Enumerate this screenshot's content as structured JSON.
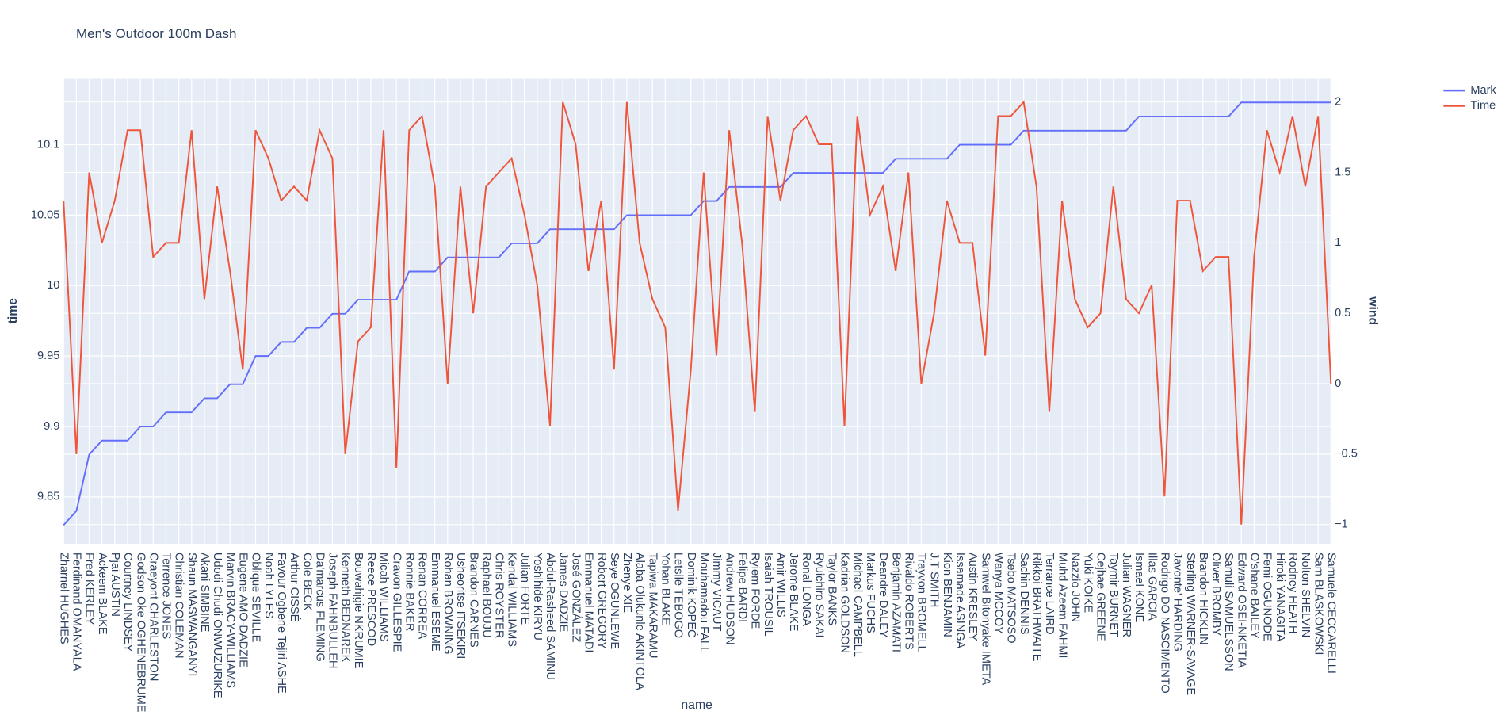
{
  "chart_data": {
    "type": "line",
    "title": "Men's Outdoor 100m Dash",
    "x_label": "name",
    "y_label": "time",
    "y2_label": "wind",
    "categories": [
      "Zharnel HUGHES",
      "Ferdinand OMANYALA",
      "Fred KERLEY",
      "Ackeem BLAKE",
      "Pjai AUSTIN",
      "Courtney LINDSEY",
      "Godson Oke OGHENEBRUME",
      "Craeyont CHARLESTON",
      "Terrence JONES",
      "Christian COLEMAN",
      "Shaun MASWANGANYI",
      "Akani SIMBINE",
      "Udodi Chudi ONWUZURIKE",
      "Marvin BRACY-WILLIAMS",
      "Eugene AMO-DADZIE",
      "Oblique SEVILLE",
      "Noah LYLES",
      "Favour Ogbene Tejiri ASHE",
      "Arthur CISSÉ",
      "Cole BECK",
      "Da'marcus FLEMING",
      "Joseph FAHNBULLEH",
      "Kenneth BEDNAREK",
      "Bouwahjgie NKRUMIE",
      "Reece PRESCOD",
      "Micah WILLIAMS",
      "Cravon GILLESPIE",
      "Ronnie BAKER",
      "Renan CORREA",
      "Emmanuel ESEME",
      "Rohan BROWNING",
      "Usheoritse ITSEKIRI",
      "Brandon CARNES",
      "Raphael BOUJU",
      "Chris ROYSTER",
      "Kendal WILLIAMS",
      "Julian FORTE",
      "Yoshihide KIRYU",
      "Abdul-Rasheed SAMINU",
      "James DADZIE",
      "José GONZÁLEZ",
      "Emmanuel MATADI",
      "Robert GREGORY",
      "Seye OGUNLEWE",
      "Zhenye XIE",
      "Alaba Olukunle AKINTOLA",
      "Tapiwa MAKARAMU",
      "Yohan BLAKE",
      "Letsile TEBOGO",
      "Dominik KOPEĆ",
      "Mouhamadou FALL",
      "Jimmy VICAUT",
      "Andrew HUDSON",
      "Felipe BARDI",
      "Ryiem FORDE",
      "Isaiah TROUSIL",
      "Amir WILLIS",
      "Jerome BLAKE",
      "Ronal LONGA",
      "Ryuichiro SAKAI",
      "Taylor BANKS",
      "Kadrian GOLDSON",
      "Michael CAMPBELL",
      "Markus FUCHS",
      "Deandre DALEY",
      "Benjamin AZAMATI",
      "Rivaldo ROBERTS",
      "Trayvon BROMELL",
      "J.T SMITH",
      "Kion BENJAMIN",
      "Issamade ASINGA",
      "Austin KRESLEY",
      "Samwel Bitonyake IMETA",
      "Wanya MCCOY",
      "Tsebo MATSOSO",
      "Sachin DENNIS",
      "Rikkoi BRATHWAITE",
      "Terrance LAIRD",
      "Muhd Azeem FAHMI",
      "Nazzio JOHN",
      "Yuki KOIKE",
      "Cejhae GREENE",
      "Taymir BURNET",
      "Julian WAGNER",
      "Ismael KONE",
      "Illas GARCIA",
      "Rodrigo DO NASCIMENTO",
      "Javonte' HARDING",
      "Sterling WARNER-SAVAGE",
      "Brandon HICKLIN",
      "Oliver BROMBY",
      "Samuli SAMUELSSON",
      "Edward OSEI-NKETIA",
      "O'shane BAILEY",
      "Femi OGUNODE",
      "Hiroki YANAGITA",
      "Rodney HEATH",
      "Nolton SHELVIN",
      "Sam BLASKOWSKI",
      "Samuele CECCARELLI"
    ],
    "series": [
      {
        "name": "Mark",
        "color": "#636efa",
        "values": [
          9.83,
          9.84,
          9.88,
          9.89,
          9.89,
          9.89,
          9.9,
          9.9,
          9.91,
          9.91,
          9.91,
          9.92,
          9.92,
          9.93,
          9.93,
          9.95,
          9.95,
          9.96,
          9.96,
          9.97,
          9.97,
          9.98,
          9.98,
          9.99,
          9.99,
          9.99,
          9.99,
          10.01,
          10.01,
          10.01,
          10.02,
          10.02,
          10.02,
          10.02,
          10.02,
          10.03,
          10.03,
          10.03,
          10.04,
          10.04,
          10.04,
          10.04,
          10.04,
          10.04,
          10.05,
          10.05,
          10.05,
          10.05,
          10.05,
          10.05,
          10.06,
          10.06,
          10.07,
          10.07,
          10.07,
          10.07,
          10.07,
          10.08,
          10.08,
          10.08,
          10.08,
          10.08,
          10.08,
          10.08,
          10.08,
          10.09,
          10.09,
          10.09,
          10.09,
          10.09,
          10.1,
          10.1,
          10.1,
          10.1,
          10.1,
          10.11,
          10.11,
          10.11,
          10.11,
          10.11,
          10.11,
          10.11,
          10.11,
          10.11,
          10.12,
          10.12,
          10.12,
          10.12,
          10.12,
          10.12,
          10.12,
          10.12,
          10.13,
          10.13,
          10.13,
          10.13,
          10.13,
          10.13,
          10.13,
          10.13
        ]
      },
      {
        "name": "Time",
        "color": "#EF553B",
        "axis": "y2",
        "values": [
          1.3,
          -0.5,
          1.5,
          1.0,
          1.3,
          1.8,
          1.8,
          0.9,
          1.0,
          1.0,
          1.8,
          0.6,
          1.4,
          0.8,
          0.1,
          1.8,
          1.6,
          1.3,
          1.4,
          1.3,
          1.8,
          1.6,
          -0.5,
          0.3,
          0.4,
          1.8,
          -0.6,
          1.8,
          1.9,
          1.4,
          0.0,
          1.4,
          0.5,
          1.4,
          1.5,
          1.6,
          1.2,
          0.7,
          -0.3,
          2.0,
          1.7,
          0.8,
          1.3,
          0.1,
          2.0,
          1.0,
          0.6,
          0.4,
          -0.9,
          0.1,
          1.5,
          0.2,
          1.8,
          1.0,
          -0.2,
          1.9,
          1.3,
          1.8,
          1.9,
          1.7,
          1.7,
          -0.3,
          1.9,
          1.2,
          1.4,
          0.8,
          1.5,
          0.0,
          0.5,
          1.3,
          1.0,
          1.0,
          0.2,
          1.9,
          1.9,
          2.0,
          1.4,
          -0.2,
          1.3,
          0.6,
          0.4,
          0.5,
          1.4,
          0.6,
          0.5,
          0.7,
          -0.8,
          1.3,
          1.3,
          0.8,
          0.9,
          0.9,
          -1.0,
          0.9,
          1.8,
          1.5,
          1.9,
          1.4,
          1.9,
          0.0
        ]
      }
    ],
    "ylim": [
      9.8167,
      10.1467
    ],
    "yticks": [
      9.85,
      9.9,
      9.95,
      10,
      10.05,
      10.1
    ],
    "y2lim": [
      -1.137,
      2.164
    ],
    "y2ticks": [
      {
        "value": -1,
        "label": "−1"
      },
      {
        "value": -0.5,
        "label": "−0.5"
      },
      0,
      0.5,
      1,
      1.5,
      2
    ],
    "grid": true,
    "legend": "top-right"
  }
}
